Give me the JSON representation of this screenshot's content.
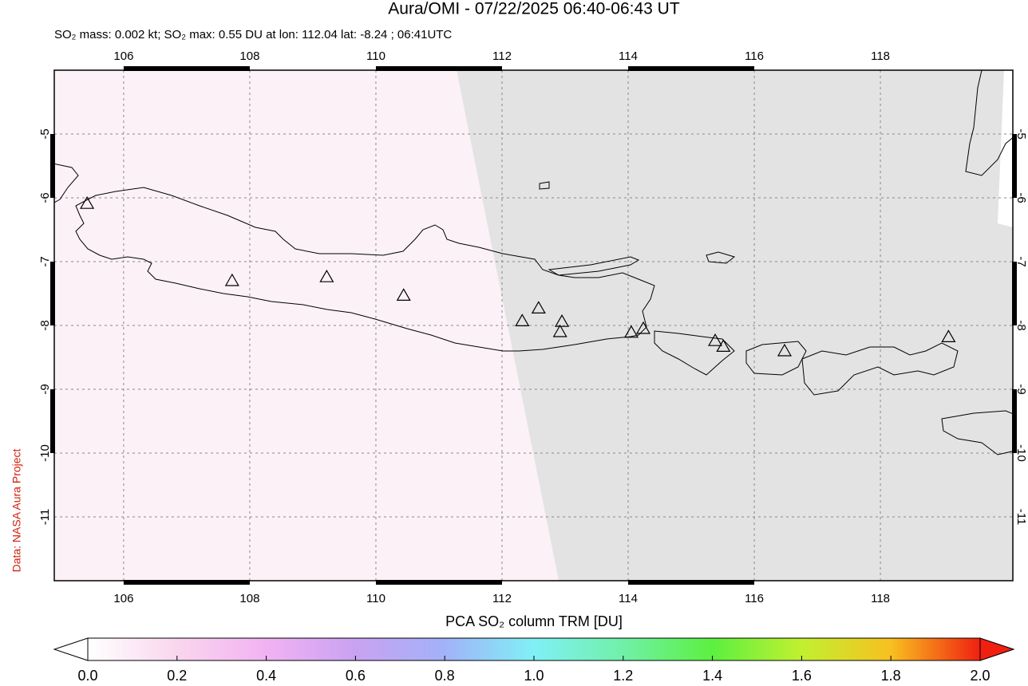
{
  "chart_data": {
    "type": "map",
    "title": "Aura/OMI - 07/22/2025 06:40-06:43 UT",
    "subtitle": "SO₂ mass: 0.002 kt; SO₂ max: 0.55 DU at lon: 112.04 lat: -8.24 ; 06:41UTC",
    "credit": "Data: NASA Aura Project",
    "xlim": [
      104.9,
      120.1
    ],
    "ylim": [
      -12,
      -4
    ],
    "xticks": [
      106,
      108,
      110,
      112,
      114,
      116,
      118
    ],
    "yticks": [
      -5,
      -6,
      -7,
      -8,
      -9,
      -10,
      -11
    ],
    "grid": true,
    "volcanoes": {
      "marker_color": "#000000",
      "lon": [
        105.42,
        107.72,
        109.22,
        110.44,
        112.32,
        112.58,
        112.95,
        112.92,
        114.05,
        114.24,
        115.38,
        115.51,
        116.48,
        119.08
      ],
      "lat": [
        -6.09,
        -7.3,
        -7.24,
        -7.53,
        -7.93,
        -7.73,
        -7.94,
        -8.1,
        -8.11,
        -8.05,
        -8.24,
        -8.33,
        -8.4,
        -8.18
      ]
    },
    "colorbar": {
      "label": "PCA SO₂ column TRM [DU]",
      "lim": [
        0,
        2
      ],
      "ticks": [
        {
          "value": 0,
          "label": "0.0"
        },
        0.2,
        0.4,
        0.6,
        0.8,
        {
          "value": 1,
          "label": "1.0"
        },
        1.2,
        1.4,
        1.6,
        1.8,
        {
          "value": 2,
          "label": "2.0"
        }
      ],
      "colors": [
        "#ffffff",
        "#f9d6ee",
        "#f2b2f2",
        "#c9a2f2",
        "#a2b2f8",
        "#80f0f6",
        "#70f0a8",
        "#5cf040",
        "#c2f030",
        "#f8c020",
        "#f02010"
      ]
    }
  }
}
